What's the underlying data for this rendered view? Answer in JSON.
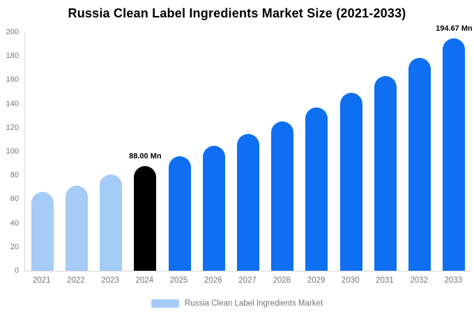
{
  "page": {
    "background": "#ffffff"
  },
  "chart_data": {
    "type": "bar",
    "title": "Russia Clean Label Ingredients Market Size (2021-2033)",
    "unit": "Mn",
    "categories": [
      "2021",
      "2022",
      "2023",
      "2024",
      "2025",
      "2026",
      "2027",
      "2028",
      "2029",
      "2030",
      "2031",
      "2032",
      "2033"
    ],
    "values": [
      66,
      71.5,
      80.5,
      88.0,
      96.12,
      104.98,
      114.66,
      125.24,
      136.79,
      149.41,
      163.19,
      178.25,
      194.67
    ],
    "bar_colors": [
      "#a5cbf7",
      "#a5cbf7",
      "#a5cbf7",
      "#000000",
      "#0e6ff2",
      "#0e6ff2",
      "#0e6ff2",
      "#0e6ff2",
      "#0e6ff2",
      "#0e6ff2",
      "#0e6ff2",
      "#0e6ff2",
      "#0e6ff2"
    ],
    "ylim": [
      0,
      200
    ],
    "yticks": [
      0,
      20,
      40,
      60,
      80,
      100,
      120,
      140,
      160,
      180,
      200
    ],
    "grid": "none",
    "legend_position": "bottom",
    "annotations": [
      {
        "category": "2024",
        "text": "88.00 Mn"
      },
      {
        "category": "2033",
        "text": "194.67 Mn"
      }
    ],
    "legend": {
      "label": "Russia Clean Label Ingredients Market",
      "swatch_color": "#a5cbf7"
    },
    "colors": {
      "past_bars": "#a5cbf7",
      "highlight_bar": "#000000",
      "forecast_bars": "#0e6ff2",
      "axis_line": "#d8d8d8",
      "tick_text": "#757575",
      "title_text": "#000000",
      "annotation_text": "#000000"
    }
  }
}
